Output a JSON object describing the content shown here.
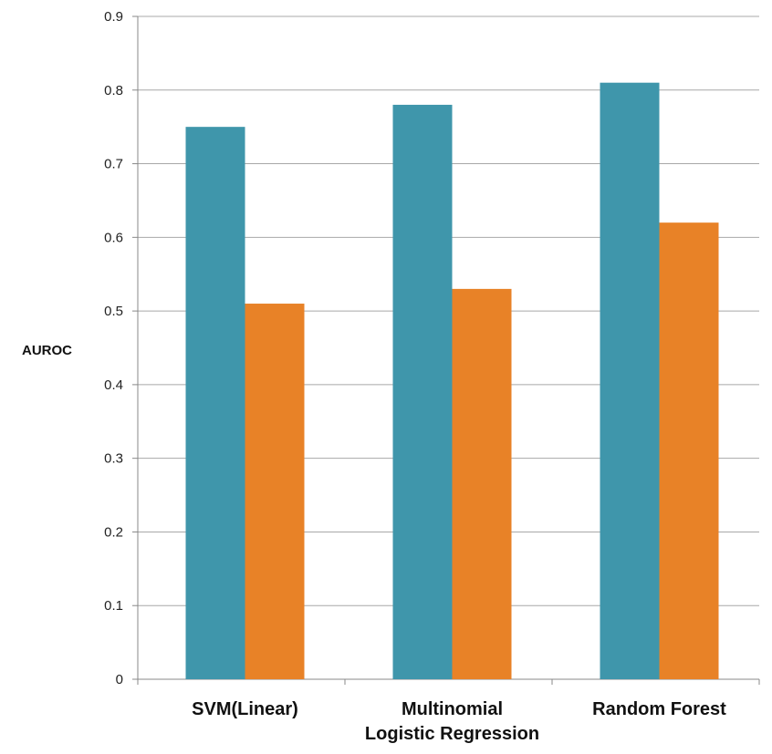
{
  "chart_data": {
    "type": "bar",
    "title": "",
    "xlabel": "",
    "ylabel": "AUROC",
    "ylim": [
      0,
      0.9
    ],
    "yticks": [
      "0",
      "0.1",
      "0.2",
      "0.3",
      "0.4",
      "0.5",
      "0.6",
      "0.7",
      "0.8",
      "0.9"
    ],
    "grid": true,
    "legend": "none",
    "categories": [
      [
        "SVM(Linear)"
      ],
      [
        "Multinomial",
        "Logistic Regression"
      ],
      [
        "Random Forest"
      ]
    ],
    "series": [
      {
        "values": [
          0.75,
          0.78,
          0.81
        ],
        "color": "#3f96ab"
      },
      {
        "values": [
          0.51,
          0.53,
          0.62
        ],
        "color": "#e88227"
      }
    ]
  }
}
